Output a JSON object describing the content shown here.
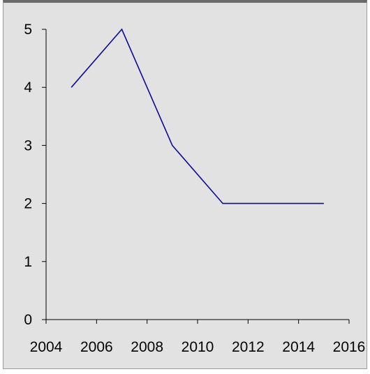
{
  "chart_data": {
    "type": "line",
    "title": "",
    "xlabel": "",
    "ylabel": "",
    "xlim": [
      2004,
      2016
    ],
    "ylim": [
      0,
      5
    ],
    "x_ticks": [
      2004,
      2006,
      2008,
      2010,
      2012,
      2014,
      2016
    ],
    "y_ticks": [
      0,
      1,
      2,
      3,
      4,
      5
    ],
    "grid": false,
    "legend": "none",
    "series": [
      {
        "color": "#0b0b9a",
        "x": [
          2005,
          2007,
          2009,
          2011,
          2013,
          2015
        ],
        "y": [
          4,
          5,
          3,
          2,
          2,
          2
        ]
      }
    ]
  }
}
